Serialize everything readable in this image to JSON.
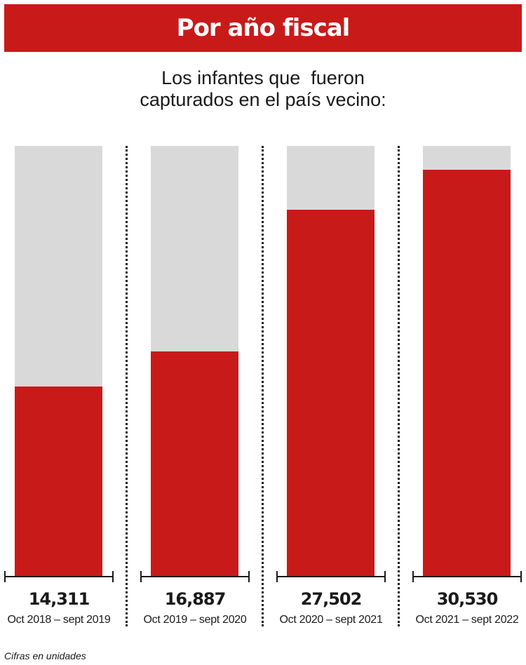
{
  "chart_data": {
    "type": "bar",
    "title": "Por año fiscal",
    "subtitle_lines": [
      "Los infantes que  fueron",
      "capturados en el país vecino:"
    ],
    "categories": [
      "Oct 2018 – sept 2019",
      "Oct 2019 – sept 2020",
      "Oct 2020 – sept 2021",
      "Oct 2021 – sept 2022"
    ],
    "values": [
      14311,
      16887,
      27502,
      30530
    ],
    "value_labels": [
      "14,311",
      "16,887",
      "27,502",
      "30,530"
    ],
    "ylim": [
      0,
      32300
    ],
    "grid": false,
    "colors": {
      "bar": "#c91a1a",
      "background_bar": "#d9d9d9",
      "banner": "#c91a1a"
    },
    "footnote": "Cifras en unidades"
  }
}
